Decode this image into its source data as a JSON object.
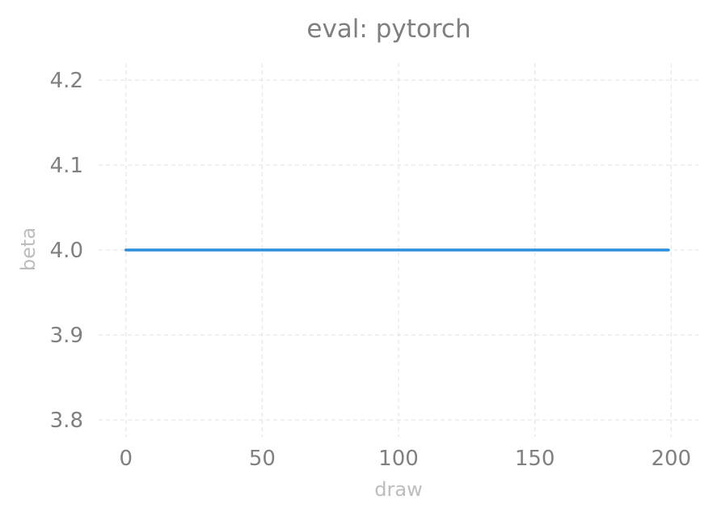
{
  "chart_data": {
    "type": "line",
    "title": "eval: pytorch",
    "xlabel": "draw",
    "ylabel": "beta",
    "xlim": [
      -10,
      210
    ],
    "ylim": [
      3.78,
      4.22
    ],
    "x_ticks": [
      0,
      50,
      100,
      150,
      200
    ],
    "y_ticks": [
      3.8,
      3.9,
      4.0,
      4.1,
      4.2
    ],
    "x_tick_labels": [
      "0",
      "50",
      "100",
      "150",
      "200"
    ],
    "y_tick_labels": [
      "3.8",
      "3.9",
      "4.0",
      "4.1",
      "4.2"
    ],
    "grid": true,
    "series": [
      {
        "color": "#2a8fdd",
        "x": [
          0,
          199
        ],
        "y": [
          4.0,
          4.0
        ]
      }
    ]
  }
}
